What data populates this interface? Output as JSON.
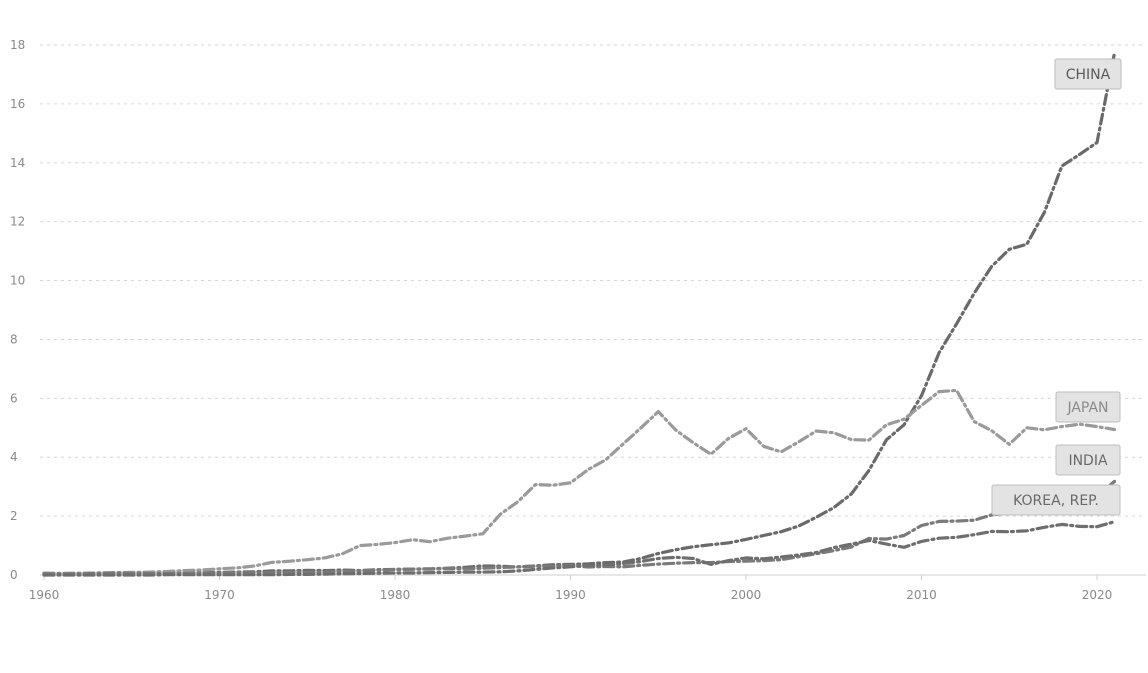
{
  "chart_data": {
    "type": "line",
    "title": "",
    "xlabel": "",
    "ylabel": "",
    "xlim": [
      1960,
      2022
    ],
    "ylim": [
      0,
      18
    ],
    "yticks": [
      0,
      2,
      4,
      6,
      8,
      10,
      12,
      14,
      16,
      18
    ],
    "xticks": [
      1960,
      1970,
      1980,
      1990,
      2000,
      2010,
      2020
    ],
    "grid": "horizontal dashed",
    "legend": "direct labels at line ends (right)",
    "series": [
      {
        "name": "CHINA",
        "color": "#6a6a6a",
        "dash": "10 4 2 4",
        "x": [
          1960,
          1961,
          1962,
          1963,
          1964,
          1965,
          1966,
          1967,
          1968,
          1969,
          1970,
          1971,
          1972,
          1973,
          1974,
          1975,
          1976,
          1977,
          1978,
          1979,
          1980,
          1981,
          1982,
          1983,
          1984,
          1985,
          1986,
          1987,
          1988,
          1989,
          1990,
          1991,
          1992,
          1993,
          1994,
          1995,
          1996,
          1997,
          1998,
          1999,
          2000,
          2001,
          2002,
          2003,
          2004,
          2005,
          2006,
          2007,
          2008,
          2009,
          2010,
          2011,
          2012,
          2013,
          2014,
          2015,
          2016,
          2017,
          2018,
          2019,
          2020,
          2021
        ],
        "values": [
          0.06,
          0.05,
          0.05,
          0.05,
          0.06,
          0.07,
          0.07,
          0.07,
          0.07,
          0.08,
          0.09,
          0.1,
          0.11,
          0.14,
          0.14,
          0.16,
          0.15,
          0.17,
          0.15,
          0.18,
          0.19,
          0.2,
          0.21,
          0.23,
          0.26,
          0.31,
          0.3,
          0.27,
          0.31,
          0.35,
          0.36,
          0.38,
          0.42,
          0.44,
          0.56,
          0.73,
          0.86,
          0.96,
          1.03,
          1.09,
          1.21,
          1.34,
          1.47,
          1.66,
          1.96,
          2.29,
          2.75,
          3.55,
          4.59,
          5.1,
          6.09,
          7.55,
          8.53,
          9.57,
          10.48,
          11.06,
          11.23,
          12.31,
          13.89,
          14.28,
          14.69,
          17.73
        ]
      },
      {
        "name": "JAPAN",
        "color": "#9a9a9a",
        "dash": "10 4 2 4",
        "x": [
          1960,
          1961,
          1962,
          1963,
          1964,
          1965,
          1966,
          1967,
          1968,
          1969,
          1970,
          1971,
          1972,
          1973,
          1974,
          1975,
          1976,
          1977,
          1978,
          1979,
          1980,
          1981,
          1982,
          1983,
          1984,
          1985,
          1986,
          1987,
          1988,
          1989,
          1990,
          1991,
          1992,
          1993,
          1994,
          1995,
          1996,
          1997,
          1998,
          1999,
          2000,
          2001,
          2002,
          2003,
          2004,
          2005,
          2006,
          2007,
          2008,
          2009,
          2010,
          2011,
          2012,
          2013,
          2014,
          2015,
          2016,
          2017,
          2018,
          2019,
          2020,
          2021
        ],
        "values": [
          0.04,
          0.05,
          0.06,
          0.07,
          0.08,
          0.09,
          0.1,
          0.12,
          0.15,
          0.17,
          0.21,
          0.24,
          0.31,
          0.43,
          0.47,
          0.52,
          0.58,
          0.72,
          1.0,
          1.04,
          1.1,
          1.2,
          1.13,
          1.25,
          1.32,
          1.4,
          2.06,
          2.49,
          3.07,
          3.05,
          3.13,
          3.58,
          3.91,
          4.45,
          4.99,
          5.55,
          4.92,
          4.49,
          4.1,
          4.64,
          4.97,
          4.37,
          4.18,
          4.52,
          4.89,
          4.83,
          4.6,
          4.58,
          5.1,
          5.29,
          5.76,
          6.23,
          6.27,
          5.21,
          4.9,
          4.44,
          5.0,
          4.93,
          5.04,
          5.12,
          5.04,
          4.94
        ]
      },
      {
        "name": "INDIA",
        "color": "#7a7a7a",
        "dash": "10 4 2 4",
        "x": [
          1960,
          1961,
          1962,
          1963,
          1964,
          1965,
          1966,
          1967,
          1968,
          1969,
          1970,
          1971,
          1972,
          1973,
          1974,
          1975,
          1976,
          1977,
          1978,
          1979,
          1980,
          1981,
          1982,
          1983,
          1984,
          1985,
          1986,
          1987,
          1988,
          1989,
          1990,
          1991,
          1992,
          1993,
          1994,
          1995,
          1996,
          1997,
          1998,
          1999,
          2000,
          2001,
          2002,
          2003,
          2004,
          2005,
          2006,
          2007,
          2008,
          2009,
          2010,
          2011,
          2012,
          2013,
          2014,
          2015,
          2016,
          2017,
          2018,
          2019,
          2020,
          2021
        ],
        "values": [
          0.04,
          0.04,
          0.04,
          0.05,
          0.06,
          0.06,
          0.05,
          0.05,
          0.05,
          0.06,
          0.06,
          0.07,
          0.07,
          0.08,
          0.09,
          0.1,
          0.1,
          0.12,
          0.14,
          0.16,
          0.19,
          0.2,
          0.2,
          0.22,
          0.21,
          0.23,
          0.25,
          0.28,
          0.3,
          0.3,
          0.32,
          0.27,
          0.29,
          0.28,
          0.33,
          0.37,
          0.4,
          0.42,
          0.42,
          0.46,
          0.47,
          0.49,
          0.52,
          0.62,
          0.72,
          0.83,
          0.95,
          1.24,
          1.22,
          1.34,
          1.68,
          1.82,
          1.83,
          1.86,
          2.04,
          2.1,
          2.29,
          2.65,
          2.7,
          2.84,
          2.67,
          3.18
        ]
      },
      {
        "name": "KOREA, REP.",
        "color": "#6e6e6e",
        "dash": "10 4 2 4",
        "x": [
          1960,
          1961,
          1962,
          1963,
          1964,
          1965,
          1966,
          1967,
          1968,
          1969,
          1970,
          1971,
          1972,
          1973,
          1974,
          1975,
          1976,
          1977,
          1978,
          1979,
          1980,
          1981,
          1982,
          1983,
          1984,
          1985,
          1986,
          1987,
          1988,
          1989,
          1990,
          1991,
          1992,
          1993,
          1994,
          1995,
          1996,
          1997,
          1998,
          1999,
          2000,
          2001,
          2002,
          2003,
          2004,
          2005,
          2006,
          2007,
          2008,
          2009,
          2010,
          2011,
          2012,
          2013,
          2014,
          2015,
          2016,
          2017,
          2018,
          2019,
          2020,
          2021
        ],
        "values": [
          0.0,
          0.0,
          0.0,
          0.0,
          0.0,
          0.0,
          0.0,
          0.01,
          0.01,
          0.01,
          0.01,
          0.01,
          0.01,
          0.01,
          0.02,
          0.02,
          0.03,
          0.04,
          0.05,
          0.06,
          0.07,
          0.07,
          0.08,
          0.09,
          0.1,
          0.1,
          0.11,
          0.14,
          0.19,
          0.24,
          0.28,
          0.33,
          0.34,
          0.39,
          0.46,
          0.56,
          0.6,
          0.56,
          0.36,
          0.49,
          0.58,
          0.55,
          0.61,
          0.68,
          0.76,
          0.93,
          1.05,
          1.17,
          1.05,
          0.94,
          1.14,
          1.25,
          1.28,
          1.37,
          1.48,
          1.47,
          1.5,
          1.62,
          1.72,
          1.65,
          1.64,
          1.81
        ]
      }
    ]
  }
}
